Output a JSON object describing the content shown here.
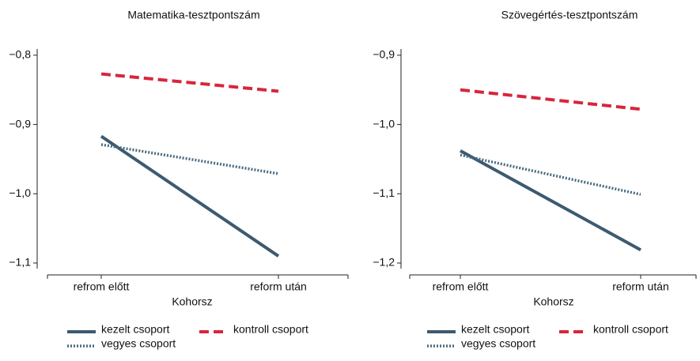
{
  "chart_data": [
    {
      "type": "line",
      "title": "Matematika-tesztpontszám",
      "x_label": "Kohorsz",
      "categories": [
        "refrom előtt",
        "reform után"
      ],
      "ylim": [
        -1.108,
        -0.791
      ],
      "yticks": [
        {
          "value": -0.8,
          "label": "−0,8"
        },
        {
          "value": -0.9,
          "label": "−0,9"
        },
        {
          "value": -1.0,
          "label": "−1,0"
        },
        {
          "value": -1.1,
          "label": "−1,1"
        }
      ],
      "series": [
        {
          "name": "kezelt csoport",
          "color": "#3d5a70",
          "style": "solid",
          "values": [
            -0.917,
            -1.09
          ]
        },
        {
          "name": "kontroll csoport",
          "color": "#d7263d",
          "style": "dashed",
          "values": [
            -0.827,
            -0.852
          ]
        },
        {
          "name": "vegyes csoport",
          "color": "#4a6a80",
          "style": "dotted",
          "values": [
            -0.929,
            -0.971
          ]
        }
      ]
    },
    {
      "type": "line",
      "title": "Szövegértés-tesztpontszám",
      "x_label": "Kohorsz",
      "categories": [
        "refrom előtt",
        "reform után"
      ],
      "ylim": [
        -1.208,
        -0.891
      ],
      "yticks": [
        {
          "value": -0.9,
          "label": "−0,9"
        },
        {
          "value": -1.0,
          "label": "−1,0"
        },
        {
          "value": -1.1,
          "label": "−1,1"
        },
        {
          "value": -1.2,
          "label": "−1,2"
        }
      ],
      "series": [
        {
          "name": "kezelt csoport",
          "color": "#3d5a70",
          "style": "solid",
          "values": [
            -1.038,
            -1.181
          ]
        },
        {
          "name": "kontroll csoport",
          "color": "#d7263d",
          "style": "dashed",
          "values": [
            -0.95,
            -0.978
          ]
        },
        {
          "name": "vegyes csoport",
          "color": "#4a6a80",
          "style": "dotted",
          "values": [
            -1.044,
            -1.101
          ]
        }
      ]
    }
  ]
}
